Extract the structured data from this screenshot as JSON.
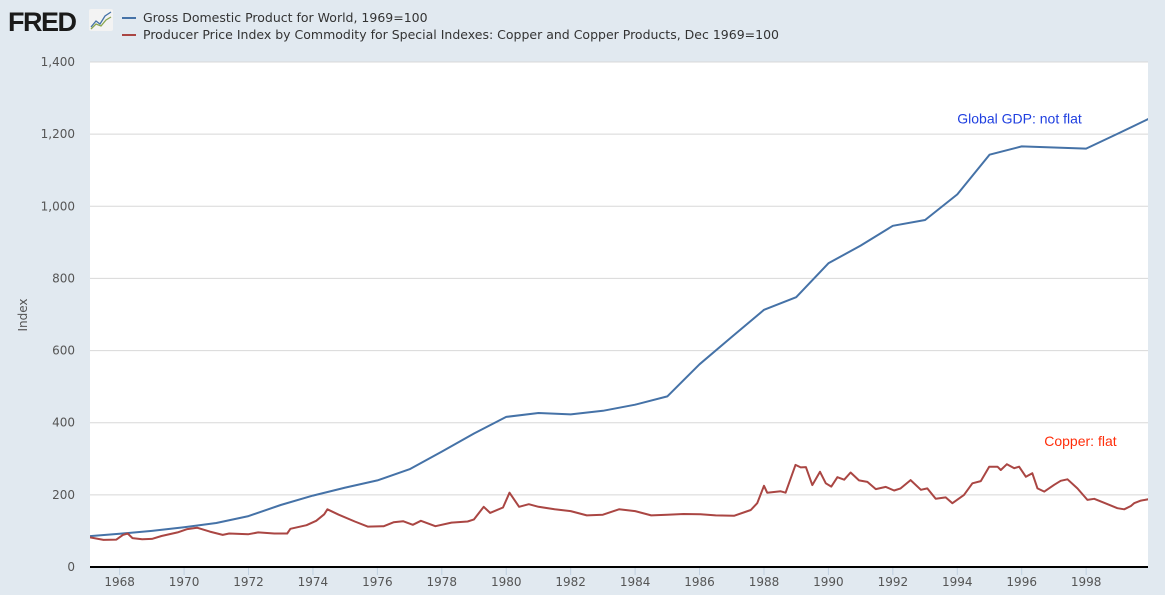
{
  "logo": "FRED",
  "chart_data": {
    "type": "line",
    "title": "",
    "xlabel": "",
    "ylabel": "Index",
    "xlim": [
      1967.08,
      1999.92
    ],
    "ylim": [
      0,
      1400
    ],
    "grid": true,
    "legend_placement": "top-left",
    "x_ticks": [
      "1968",
      "1970",
      "1972",
      "1974",
      "1976",
      "1978",
      "1980",
      "1982",
      "1984",
      "1986",
      "1988",
      "1990",
      "1992",
      "1994",
      "1996",
      "1998"
    ],
    "y_ticks": [
      "0",
      "200",
      "400",
      "600",
      "800",
      "1,000",
      "1,200",
      "1,400"
    ],
    "annotations": [
      {
        "text": "Global GDP: not flat",
        "color": "#1f3fe0",
        "x": 1994.0,
        "y": 1230
      },
      {
        "text": "Copper: flat",
        "color": "#ff2d0a",
        "x": 1996.7,
        "y": 335
      }
    ],
    "series": [
      {
        "name": "Gross Domestic Product for World, 1969=100",
        "color": "#4572a7",
        "points": [
          [
            1967,
            85
          ],
          [
            1968,
            92
          ],
          [
            1969,
            100
          ],
          [
            1970,
            110
          ],
          [
            1971,
            122
          ],
          [
            1972,
            141
          ],
          [
            1973,
            172
          ],
          [
            1974,
            198
          ],
          [
            1975,
            220
          ],
          [
            1976,
            240
          ],
          [
            1977,
            271
          ],
          [
            1978,
            320
          ],
          [
            1979,
            370
          ],
          [
            1980,
            416
          ],
          [
            1981,
            427
          ],
          [
            1982,
            423
          ],
          [
            1983,
            433
          ],
          [
            1984,
            450
          ],
          [
            1985,
            473
          ],
          [
            1986,
            562
          ],
          [
            1987,
            638
          ],
          [
            1988,
            713
          ],
          [
            1989,
            748
          ],
          [
            1990,
            842
          ],
          [
            1991,
            891
          ],
          [
            1992,
            946
          ],
          [
            1993,
            962
          ],
          [
            1994,
            1033
          ],
          [
            1995,
            1143
          ],
          [
            1996,
            1166
          ],
          [
            1997,
            1163
          ],
          [
            1998,
            1160
          ],
          [
            1999,
            1202
          ],
          [
            2000,
            1245
          ]
        ]
      },
      {
        "name": "Producer Price Index by Commodity for Special Indexes: Copper and Copper Products, Dec 1969=100",
        "color": "#aa4643",
        "points": [
          [
            1967.08,
            82
          ],
          [
            1967.5,
            75
          ],
          [
            1967.9,
            76
          ],
          [
            1968.1,
            89
          ],
          [
            1968.25,
            93
          ],
          [
            1968.4,
            80
          ],
          [
            1968.7,
            77
          ],
          [
            1969.0,
            78
          ],
          [
            1969.3,
            86
          ],
          [
            1969.8,
            96
          ],
          [
            1970.1,
            105
          ],
          [
            1970.4,
            109
          ],
          [
            1970.8,
            98
          ],
          [
            1971.2,
            89
          ],
          [
            1971.4,
            93
          ],
          [
            1972.0,
            91
          ],
          [
            1972.3,
            96
          ],
          [
            1972.8,
            93
          ],
          [
            1973.2,
            93
          ],
          [
            1973.3,
            106
          ],
          [
            1973.8,
            116
          ],
          [
            1974.1,
            128
          ],
          [
            1974.35,
            146
          ],
          [
            1974.45,
            160
          ],
          [
            1974.8,
            145
          ],
          [
            1975.3,
            126
          ],
          [
            1975.7,
            112
          ],
          [
            1976.2,
            113
          ],
          [
            1976.5,
            124
          ],
          [
            1976.8,
            127
          ],
          [
            1977.1,
            117
          ],
          [
            1977.35,
            128
          ],
          [
            1977.8,
            113
          ],
          [
            1978.3,
            123
          ],
          [
            1978.8,
            126
          ],
          [
            1979.0,
            132
          ],
          [
            1979.3,
            167
          ],
          [
            1979.5,
            150
          ],
          [
            1979.9,
            165
          ],
          [
            1980.1,
            206
          ],
          [
            1980.4,
            167
          ],
          [
            1980.7,
            174
          ],
          [
            1981.0,
            167
          ],
          [
            1981.5,
            160
          ],
          [
            1982.0,
            155
          ],
          [
            1982.5,
            143
          ],
          [
            1983.0,
            145
          ],
          [
            1983.5,
            160
          ],
          [
            1984.0,
            155
          ],
          [
            1984.5,
            143
          ],
          [
            1985.0,
            145
          ],
          [
            1985.5,
            147
          ],
          [
            1986.03,
            146
          ],
          [
            1986.5,
            143
          ],
          [
            1987.07,
            142
          ],
          [
            1987.59,
            158
          ],
          [
            1987.79,
            177
          ],
          [
            1988.0,
            225
          ],
          [
            1988.1,
            206
          ],
          [
            1988.52,
            210
          ],
          [
            1988.67,
            206
          ],
          [
            1988.98,
            283
          ],
          [
            1989.14,
            276
          ],
          [
            1989.3,
            277
          ],
          [
            1989.5,
            227
          ],
          [
            1989.74,
            264
          ],
          [
            1989.92,
            232
          ],
          [
            1990.09,
            223
          ],
          [
            1990.28,
            249
          ],
          [
            1990.49,
            242
          ],
          [
            1990.69,
            262
          ],
          [
            1990.95,
            240
          ],
          [
            1991.21,
            236
          ],
          [
            1991.47,
            216
          ],
          [
            1991.78,
            222
          ],
          [
            1992.04,
            212
          ],
          [
            1992.24,
            218
          ],
          [
            1992.55,
            241
          ],
          [
            1992.87,
            214
          ],
          [
            1993.07,
            218
          ],
          [
            1993.33,
            189
          ],
          [
            1993.64,
            193
          ],
          [
            1993.85,
            177
          ],
          [
            1994.21,
            200
          ],
          [
            1994.47,
            232
          ],
          [
            1994.73,
            238
          ],
          [
            1994.99,
            278
          ],
          [
            1995.25,
            278
          ],
          [
            1995.35,
            269
          ],
          [
            1995.54,
            285
          ],
          [
            1995.77,
            274
          ],
          [
            1995.92,
            278
          ],
          [
            1996.13,
            250
          ],
          [
            1996.33,
            260
          ],
          [
            1996.49,
            218
          ],
          [
            1996.7,
            209
          ],
          [
            1997.01,
            228
          ],
          [
            1997.21,
            239
          ],
          [
            1997.42,
            243
          ],
          [
            1997.73,
            218
          ],
          [
            1998.04,
            186
          ],
          [
            1998.25,
            189
          ],
          [
            1998.56,
            178
          ],
          [
            1998.97,
            163
          ],
          [
            1999.18,
            160
          ],
          [
            1999.39,
            169
          ],
          [
            1999.49,
            177
          ],
          [
            1999.7,
            184
          ],
          [
            1999.94,
            188
          ]
        ]
      }
    ]
  }
}
